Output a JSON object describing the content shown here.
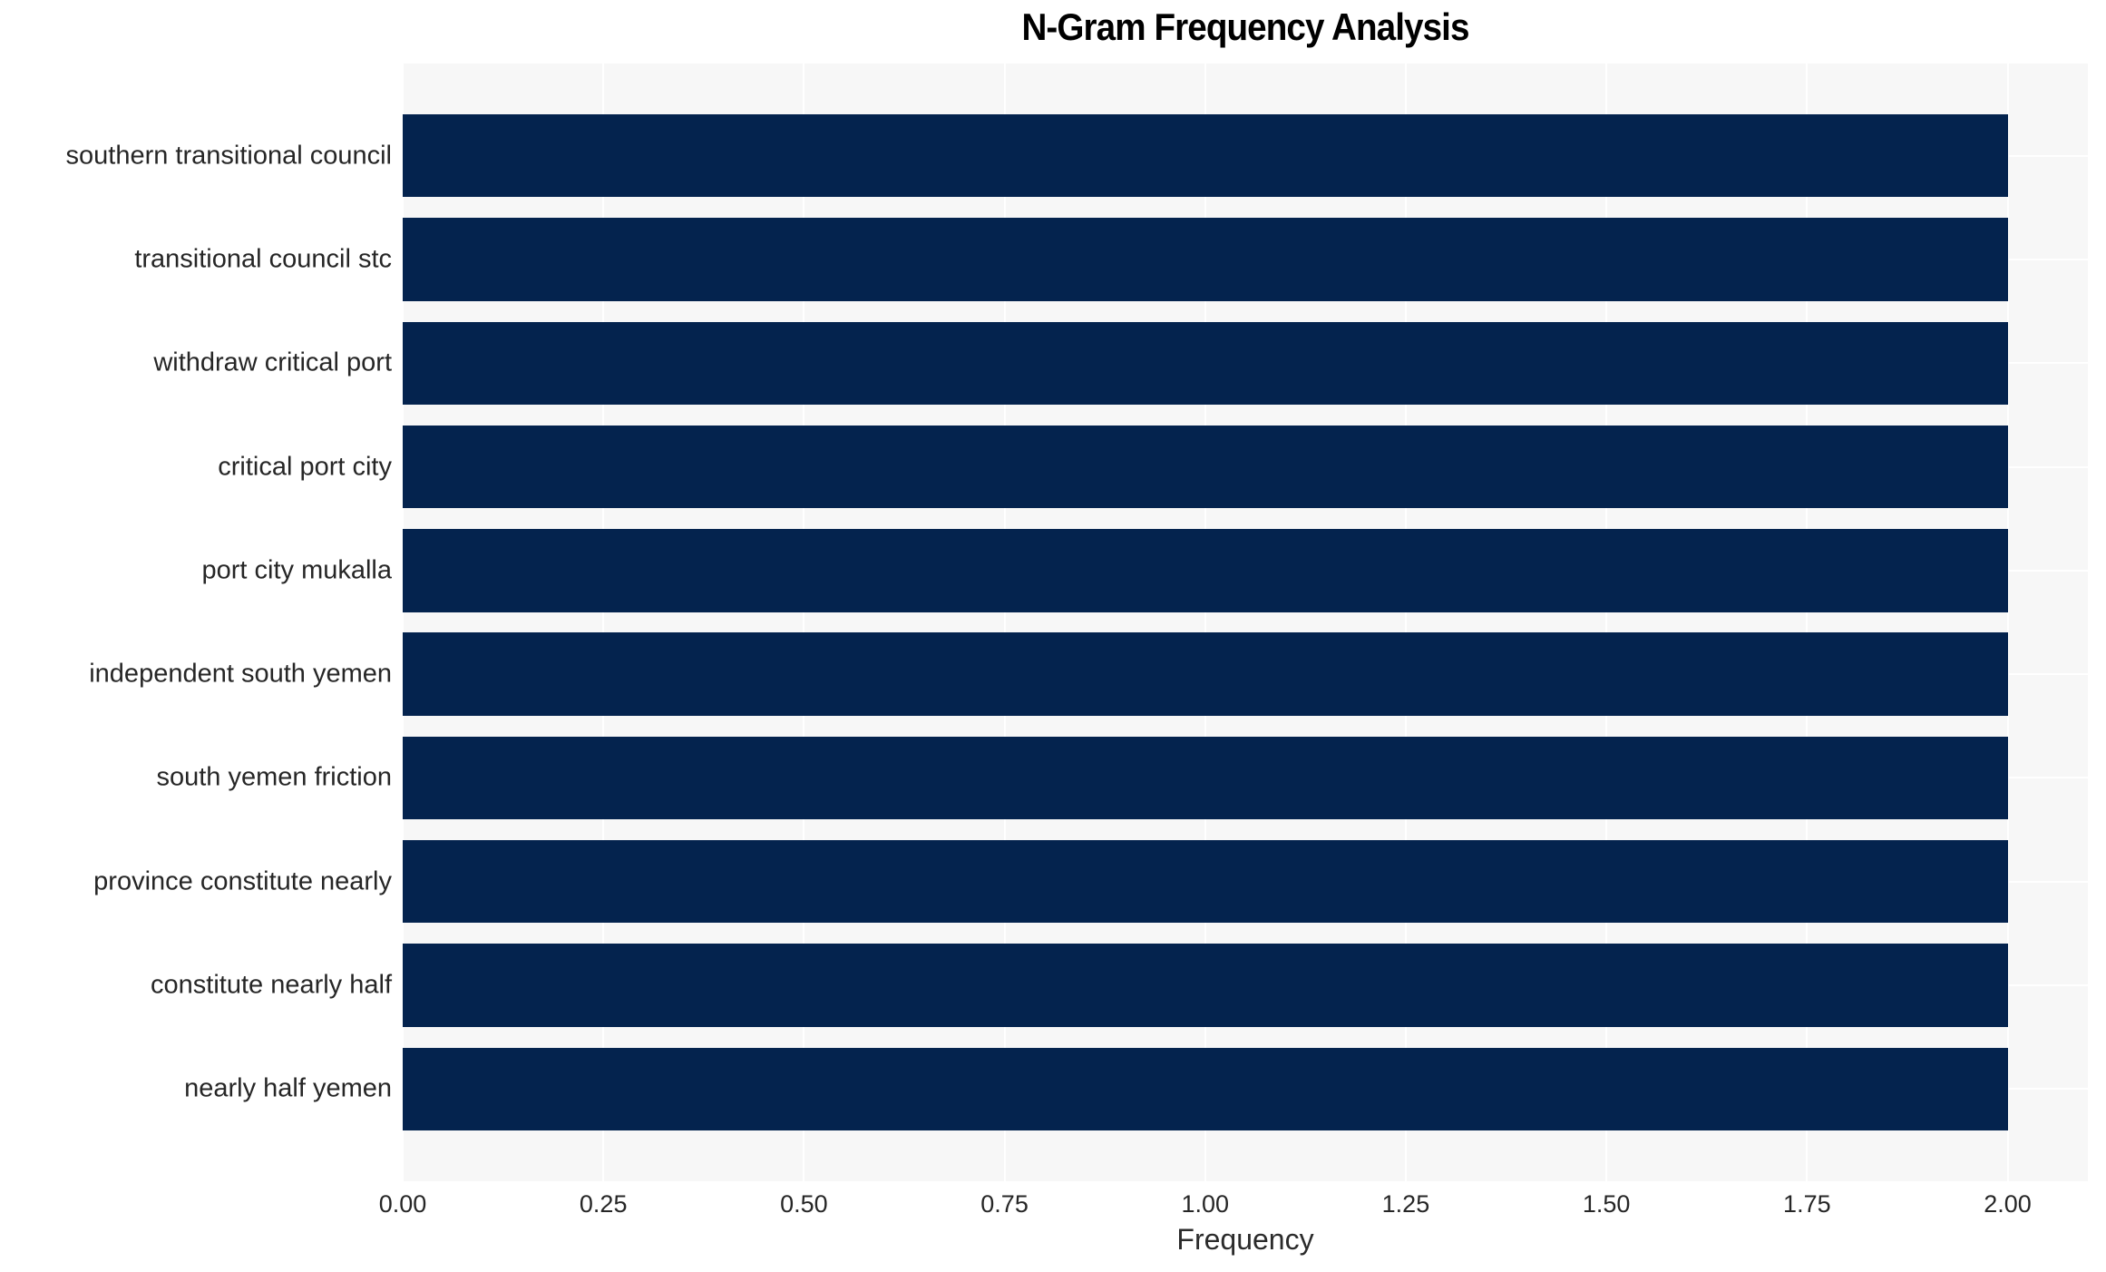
{
  "chart": {
    "title": "N-Gram Frequency Analysis",
    "xlabel": "Frequency",
    "colors": {
      "bar": "#04234e",
      "plot_background": "#f7f7f7",
      "gridline": "#ffffff",
      "tick_text": "#262626",
      "title_text": "#000000"
    }
  },
  "chart_data": {
    "type": "bar",
    "orientation": "horizontal",
    "title": "N-Gram Frequency Analysis",
    "xlabel": "Frequency",
    "ylabel": "",
    "categories": [
      "southern transitional council",
      "transitional council stc",
      "withdraw critical port",
      "critical port city",
      "port city mukalla",
      "independent south yemen",
      "south yemen friction",
      "province constitute nearly",
      "constitute nearly half",
      "nearly half yemen"
    ],
    "values": [
      2,
      2,
      2,
      2,
      2,
      2,
      2,
      2,
      2,
      2
    ],
    "xlim": [
      0,
      2.1
    ],
    "x_ticks": [
      0.0,
      0.25,
      0.5,
      0.75,
      1.0,
      1.25,
      1.5,
      1.75,
      2.0
    ],
    "x_tick_labels": [
      "0.00",
      "0.25",
      "0.50",
      "0.75",
      "1.00",
      "1.25",
      "1.50",
      "1.75",
      "2.00"
    ],
    "grid": true,
    "legend": false,
    "legend_position": null
  }
}
